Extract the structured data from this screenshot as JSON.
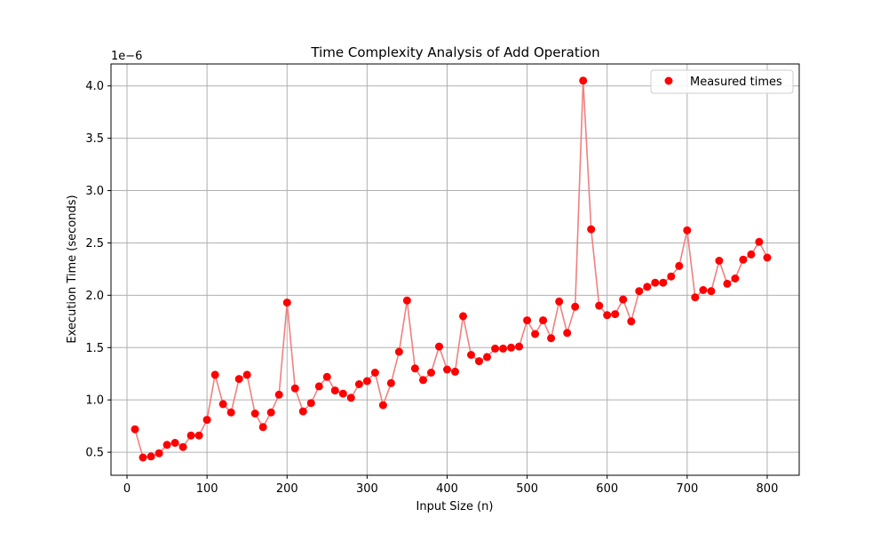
{
  "chart_data": {
    "type": "scatter",
    "title": "Time Complexity Analysis of Add Operation",
    "xlabel": "Input Size (n)",
    "ylabel": "Execution Time (seconds)",
    "y_offset_label": "1e−6",
    "xlim": [
      -20,
      840
    ],
    "ylim": [
      0.28,
      4.21
    ],
    "xticks": [
      0,
      100,
      200,
      300,
      400,
      500,
      600,
      700,
      800
    ],
    "yticks": [
      0.5,
      1.0,
      1.5,
      2.0,
      2.5,
      3.0,
      3.5,
      4.0
    ],
    "xtick_labels": [
      "0",
      "100",
      "200",
      "300",
      "400",
      "500",
      "600",
      "700",
      "800"
    ],
    "ytick_labels": [
      "0.5",
      "1.0",
      "1.5",
      "2.0",
      "2.5",
      "3.0",
      "3.5",
      "4.0"
    ],
    "grid": true,
    "legend_position": "top-right",
    "series": [
      {
        "name": "Measured times",
        "marker_color": "#ff0000",
        "line_color": "#f08080",
        "x": [
          10,
          20,
          30,
          40,
          50,
          60,
          70,
          80,
          90,
          100,
          110,
          120,
          130,
          140,
          150,
          160,
          170,
          180,
          190,
          200,
          210,
          220,
          230,
          240,
          250,
          260,
          270,
          280,
          290,
          300,
          310,
          320,
          330,
          340,
          350,
          360,
          370,
          380,
          390,
          400,
          410,
          420,
          430,
          440,
          450,
          460,
          470,
          480,
          490,
          500,
          510,
          520,
          530,
          540,
          550,
          560,
          570,
          580,
          590,
          600,
          610,
          620,
          630,
          640,
          650,
          660,
          670,
          680,
          690,
          700,
          710,
          720,
          730,
          740,
          750,
          760,
          770,
          780,
          790,
          800
        ],
        "y": [
          0.72,
          0.45,
          0.46,
          0.49,
          0.57,
          0.59,
          0.55,
          0.66,
          0.66,
          0.81,
          1.24,
          0.96,
          0.88,
          1.2,
          1.24,
          0.87,
          0.74,
          0.88,
          1.05,
          1.93,
          1.11,
          0.89,
          0.97,
          1.13,
          1.22,
          1.09,
          1.06,
          1.02,
          1.15,
          1.18,
          1.26,
          0.95,
          1.16,
          1.46,
          1.95,
          1.3,
          1.19,
          1.26,
          1.51,
          1.29,
          1.27,
          1.8,
          1.43,
          1.37,
          1.41,
          1.49,
          1.49,
          1.5,
          1.51,
          1.76,
          1.63,
          1.76,
          1.59,
          1.94,
          1.64,
          1.89,
          4.05,
          2.63,
          1.9,
          1.81,
          1.82,
          1.96,
          1.75,
          2.04,
          2.08,
          2.12,
          2.12,
          2.18,
          2.28,
          2.62,
          1.98,
          2.05,
          2.04,
          2.33,
          2.11,
          2.16,
          2.34,
          2.39,
          2.51,
          2.36
        ]
      }
    ]
  }
}
